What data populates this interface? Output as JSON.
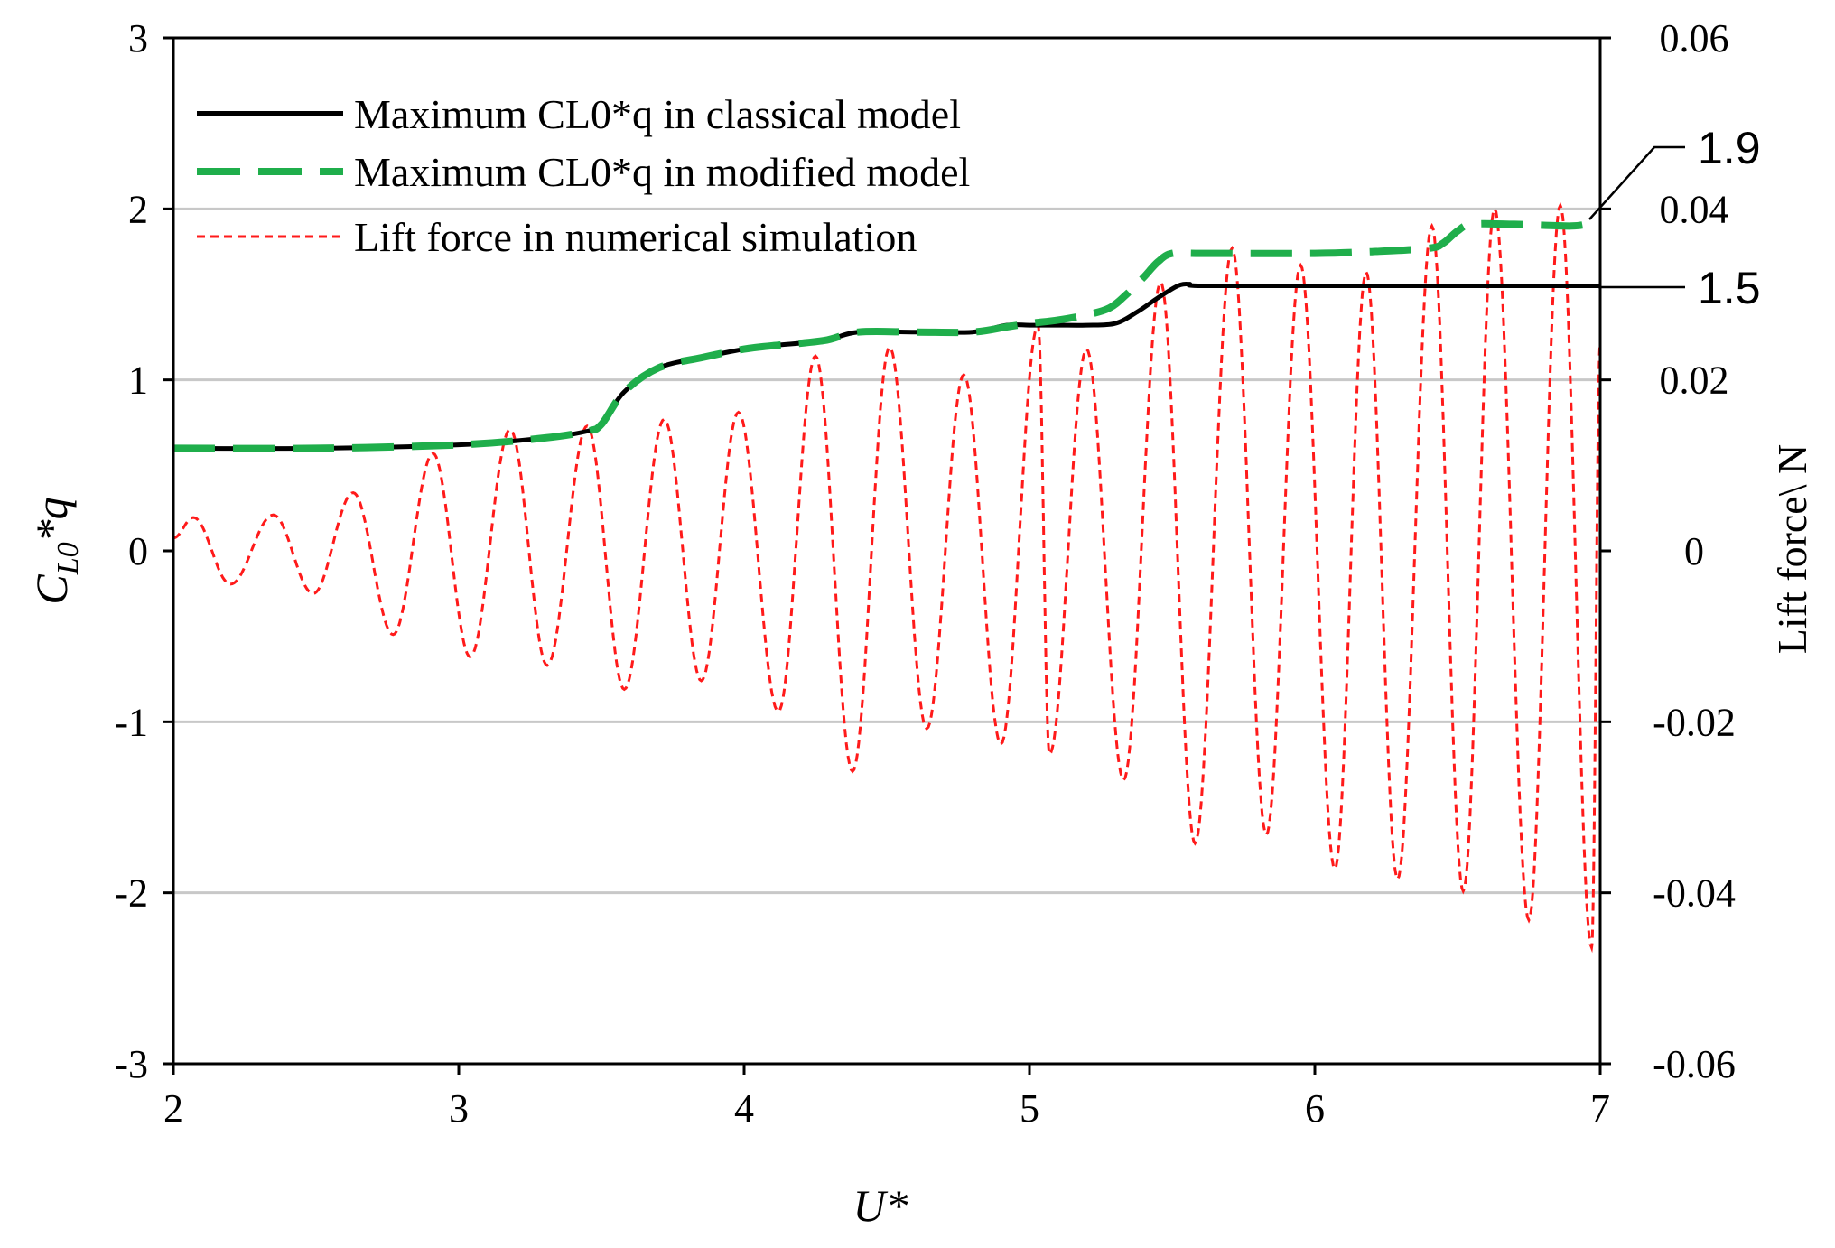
{
  "chart_data": {
    "type": "line",
    "title": "",
    "xlabel": "U*",
    "ylabel_left": {
      "base": "C",
      "sub": "L0",
      "rest": "*q"
    },
    "ylabel_right": "Lift force\\ N",
    "xlim": [
      2,
      7
    ],
    "ylim_left": [
      -3,
      3
    ],
    "ylim_right": [
      -0.06,
      0.06
    ],
    "x_ticks": [
      "2",
      "3",
      "4",
      "5",
      "6",
      "7"
    ],
    "y_ticks_left": [
      "-3",
      "-2",
      "-1",
      "0",
      "1",
      "2",
      "3"
    ],
    "y_ticks_right": [
      "-0.06",
      "-0.04",
      "-0.02",
      "0",
      "0.02",
      "0.04",
      "0.06"
    ],
    "gridlines": [
      -2,
      -1,
      1,
      2
    ],
    "legend": {
      "position": "top-left",
      "entries": [
        {
          "label": "Maximum CL0*q in classical model",
          "style": "solid",
          "color": "#000000"
        },
        {
          "label": "Maximum CL0*q in modified model",
          "style": "long-dash",
          "color": "#1fae4b"
        },
        {
          "label": "Lift force in numerical simulation",
          "style": "short-dash",
          "color": "#ff1a1a"
        }
      ]
    },
    "series": [
      {
        "name": "Maximum CL0*q in classical model",
        "axis": "left",
        "color": "#000000",
        "x": [
          2.0,
          2.5,
          3.0,
          3.3,
          3.45,
          3.5,
          3.58,
          3.7,
          3.85,
          4.0,
          4.1,
          4.28,
          4.4,
          4.6,
          4.8,
          4.92,
          5.0,
          5.1,
          5.2,
          5.3,
          5.38,
          5.45,
          5.52,
          5.56,
          5.6,
          6.0,
          6.5,
          7.0
        ],
        "y": [
          0.6,
          0.6,
          0.62,
          0.66,
          0.7,
          0.74,
          0.93,
          1.07,
          1.13,
          1.18,
          1.2,
          1.23,
          1.28,
          1.28,
          1.28,
          1.32,
          1.32,
          1.32,
          1.32,
          1.33,
          1.4,
          1.48,
          1.55,
          1.56,
          1.55,
          1.55,
          1.55,
          1.55
        ]
      },
      {
        "name": "Maximum CL0*q in modified model",
        "axis": "left",
        "color": "#1fae4b",
        "x": [
          2.0,
          2.5,
          3.0,
          3.3,
          3.45,
          3.5,
          3.58,
          3.7,
          3.85,
          4.0,
          4.1,
          4.28,
          4.4,
          4.6,
          4.8,
          4.92,
          5.0,
          5.1,
          5.2,
          5.28,
          5.34,
          5.4,
          5.45,
          5.5,
          5.6,
          6.0,
          6.2,
          6.4,
          6.45,
          6.5,
          6.55,
          6.7,
          6.9,
          6.97
        ],
        "y": [
          0.6,
          0.6,
          0.62,
          0.66,
          0.7,
          0.74,
          0.93,
          1.07,
          1.13,
          1.18,
          1.2,
          1.23,
          1.28,
          1.28,
          1.28,
          1.31,
          1.33,
          1.35,
          1.38,
          1.42,
          1.5,
          1.6,
          1.69,
          1.74,
          1.74,
          1.74,
          1.75,
          1.77,
          1.8,
          1.87,
          1.91,
          1.91,
          1.9,
          1.92
        ]
      },
      {
        "name": "Lift force in numerical simulation",
        "axis": "right",
        "color": "#ff1a1a",
        "peaks": [
          {
            "x": 2.07,
            "y": 0.0039
          },
          {
            "x": 2.2,
            "y": -0.0039
          },
          {
            "x": 2.35,
            "y": 0.0042
          },
          {
            "x": 2.49,
            "y": -0.005
          },
          {
            "x": 2.63,
            "y": 0.0068
          },
          {
            "x": 2.77,
            "y": -0.0098
          },
          {
            "x": 2.91,
            "y": 0.0114
          },
          {
            "x": 3.04,
            "y": -0.0124
          },
          {
            "x": 3.18,
            "y": 0.0142
          },
          {
            "x": 3.31,
            "y": -0.0134
          },
          {
            "x": 3.45,
            "y": 0.0146
          },
          {
            "x": 3.58,
            "y": -0.0162
          },
          {
            "x": 3.72,
            "y": 0.0154
          },
          {
            "x": 3.85,
            "y": -0.0152
          },
          {
            "x": 3.98,
            "y": 0.0162
          },
          {
            "x": 4.12,
            "y": -0.0188
          },
          {
            "x": 4.25,
            "y": 0.0228
          },
          {
            "x": 4.38,
            "y": -0.0258
          },
          {
            "x": 4.51,
            "y": 0.0238
          },
          {
            "x": 4.64,
            "y": -0.0208
          },
          {
            "x": 4.77,
            "y": 0.0206
          },
          {
            "x": 4.9,
            "y": -0.0226
          },
          {
            "x": 5.03,
            "y": 0.0264
          },
          {
            "x": 5.07,
            "y": -0.0238
          },
          {
            "x": 5.2,
            "y": 0.0236
          },
          {
            "x": 5.33,
            "y": -0.0268
          },
          {
            "x": 5.46,
            "y": 0.0314
          },
          {
            "x": 5.58,
            "y": -0.0342
          },
          {
            "x": 5.71,
            "y": 0.0354
          },
          {
            "x": 5.83,
            "y": -0.0332
          },
          {
            "x": 5.95,
            "y": 0.0334
          },
          {
            "x": 6.07,
            "y": -0.0372
          },
          {
            "x": 6.18,
            "y": 0.0326
          },
          {
            "x": 6.29,
            "y": -0.0384
          },
          {
            "x": 6.41,
            "y": 0.038
          },
          {
            "x": 6.52,
            "y": -0.0398
          },
          {
            "x": 6.63,
            "y": 0.04
          },
          {
            "x": 6.75,
            "y": -0.0432
          },
          {
            "x": 6.86,
            "y": 0.0404
          },
          {
            "x": 6.97,
            "y": -0.0464
          },
          {
            "x": 7.0,
            "y": 0.0242
          }
        ]
      }
    ],
    "annotations": [
      {
        "text": "1.9",
        "points_to": {
          "x": 6.95,
          "y": 1.9
        }
      },
      {
        "text": "1.5",
        "points_to": {
          "x": 7.0,
          "y": 1.55
        }
      }
    ]
  }
}
